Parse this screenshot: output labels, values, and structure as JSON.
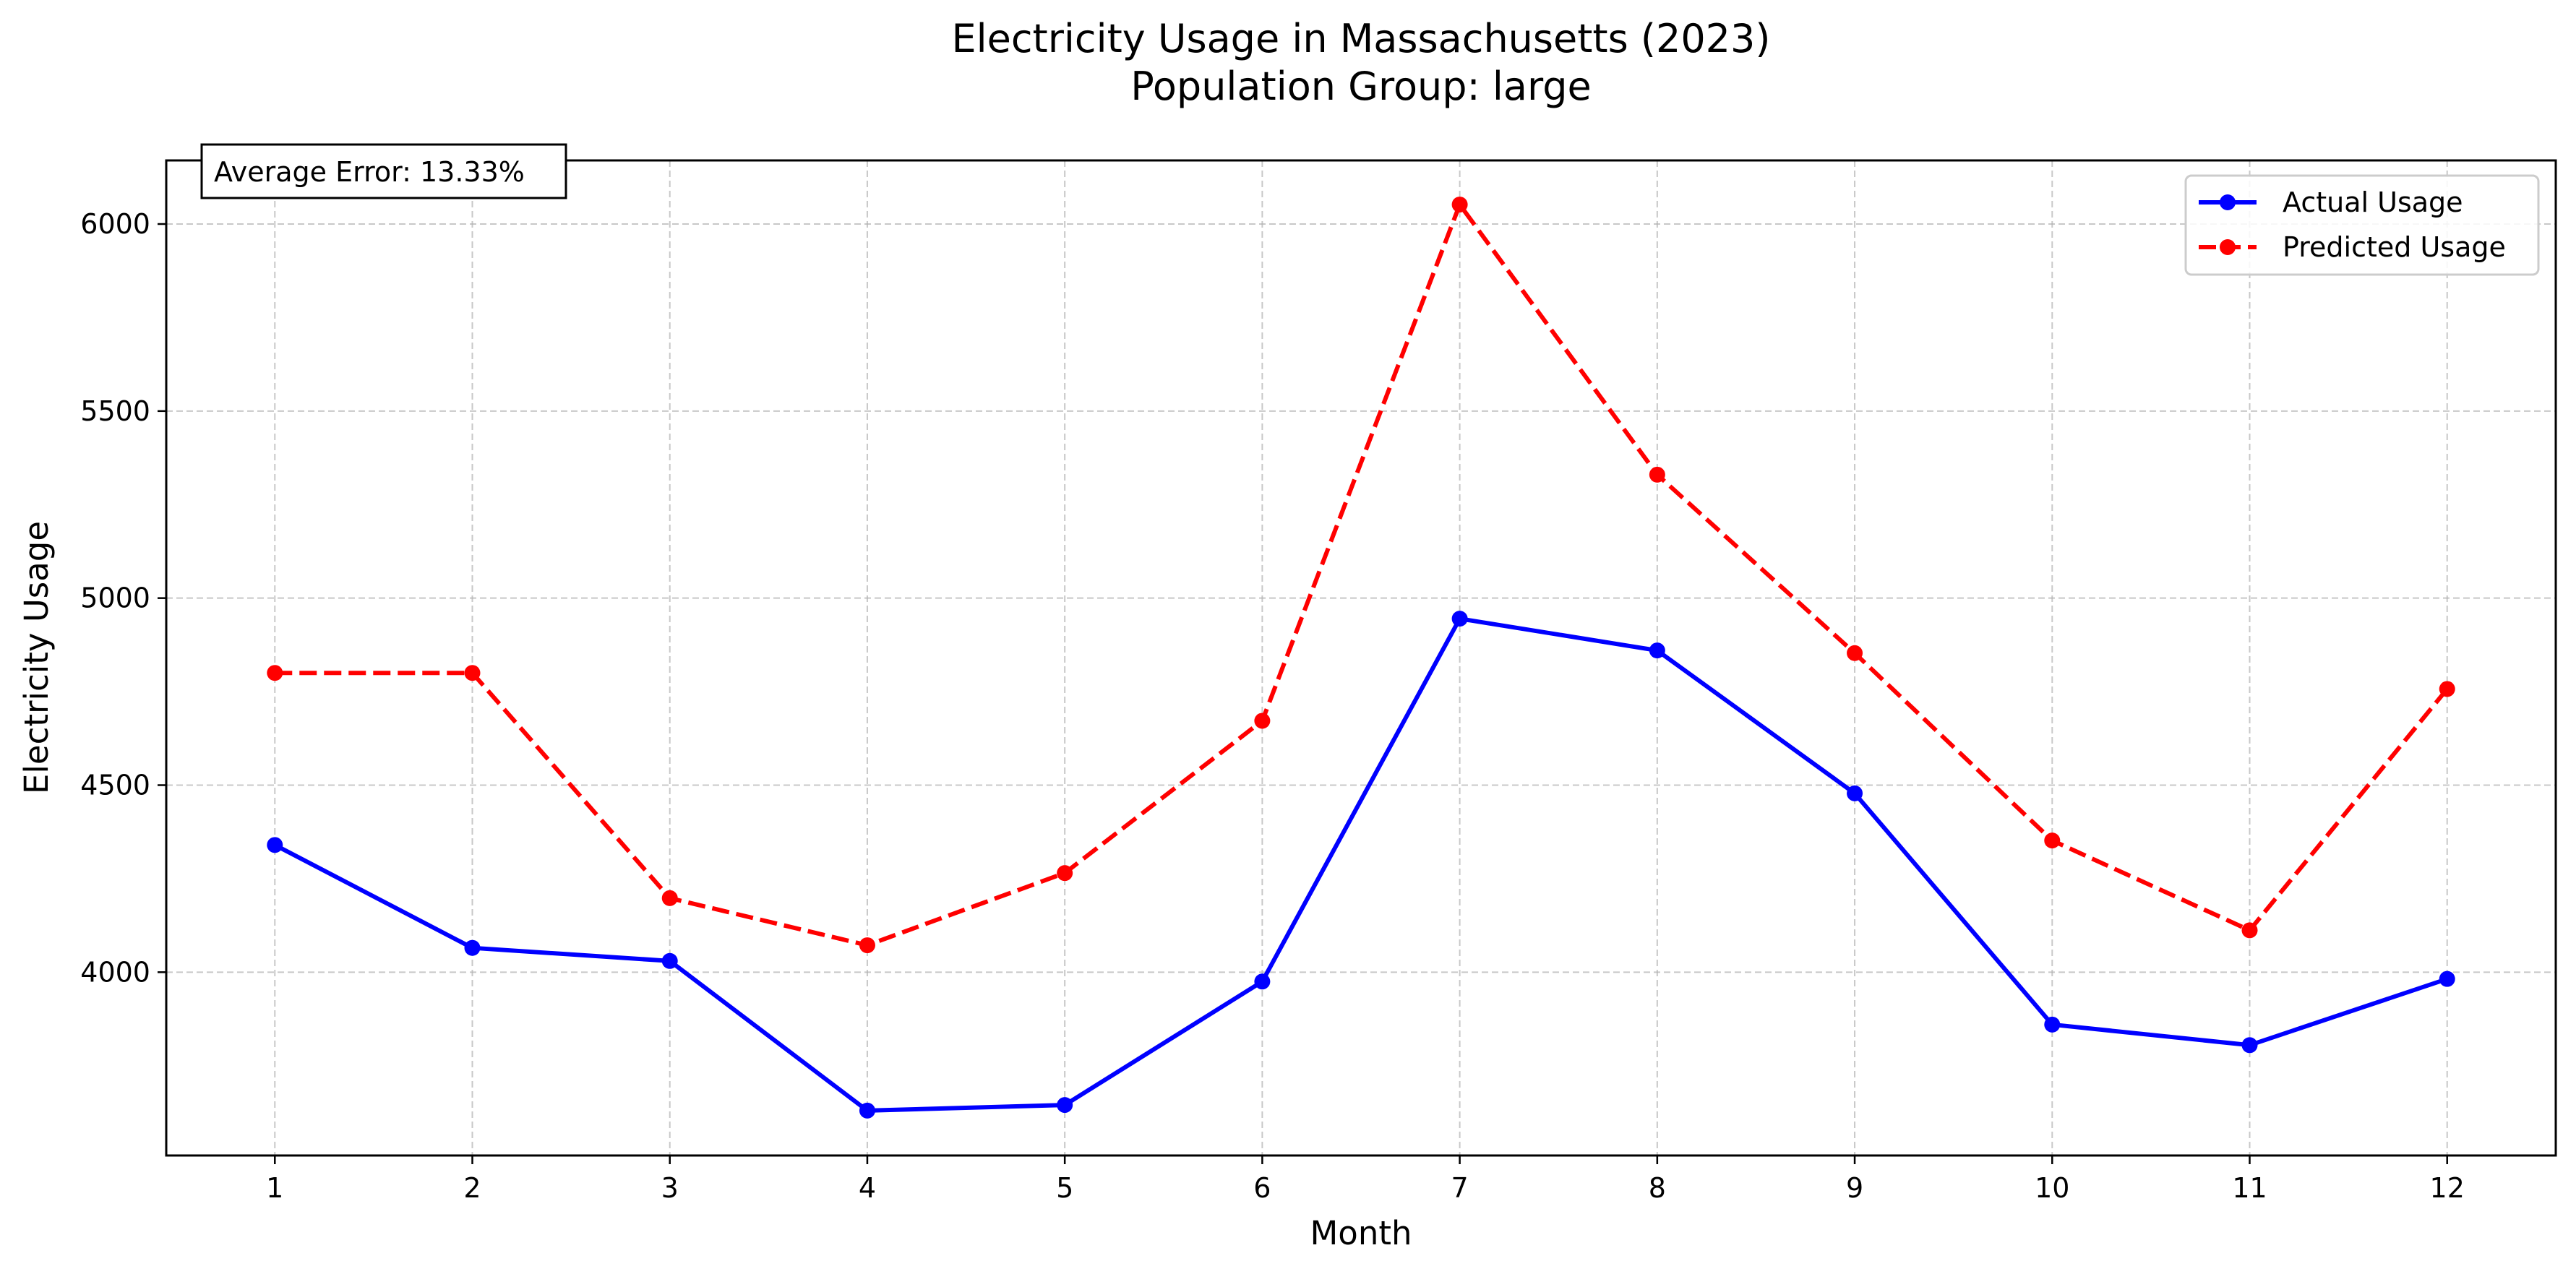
{
  "chart_data": {
    "type": "line",
    "title_line1": "Electricity Usage in Massachusetts (2023)",
    "title_line2": "Population Group: large",
    "xlabel": "Month",
    "ylabel": "Electricity Usage",
    "x": [
      1,
      2,
      3,
      4,
      5,
      6,
      7,
      8,
      9,
      10,
      11,
      12
    ],
    "xlim": [
      0.45,
      12.55
    ],
    "ylim": [
      3510,
      6170
    ],
    "yticks": [
      4000,
      4500,
      5000,
      5500,
      6000
    ],
    "grid": true,
    "legend_position": "top-right",
    "annotation": "Average Error: 13.33%",
    "series": [
      {
        "name": "Actual Usage",
        "color": "#0000ff",
        "style": "solid",
        "values": [
          4340,
          4065,
          4030,
          3630,
          3645,
          3975,
          4945,
          4860,
          4478,
          3860,
          3805,
          3982
        ]
      },
      {
        "name": "Predicted Usage",
        "color": "#ff0000",
        "style": "dashed",
        "values": [
          4800,
          4800,
          4198,
          4072,
          4265,
          4672,
          6052,
          5330,
          4853,
          4352,
          4112,
          4757
        ]
      }
    ]
  }
}
